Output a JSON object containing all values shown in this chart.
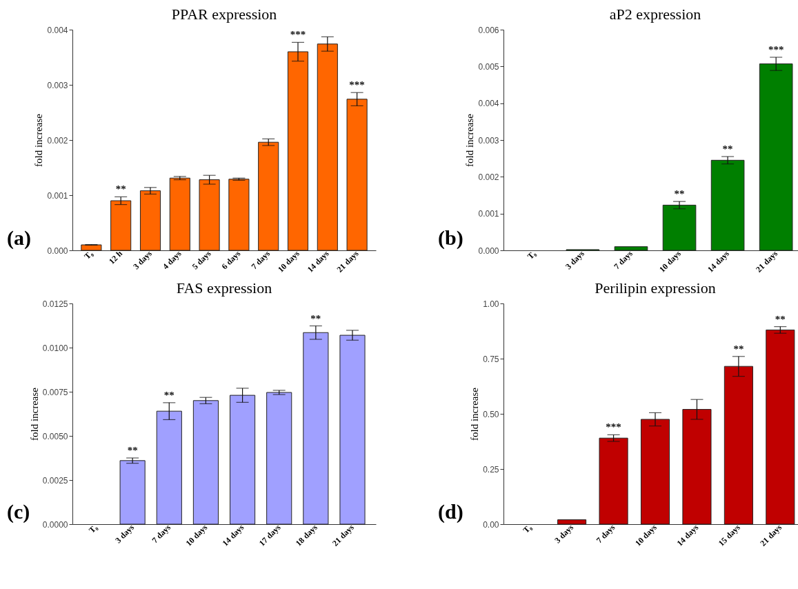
{
  "chart_data": [
    {
      "type": "bar",
      "title": "PPAR expression",
      "ylabel": "fold increase",
      "categories": [
        "T₀",
        "12 h",
        "3 days",
        "4 days",
        "5 days",
        "6 days",
        "7 days",
        "10 days",
        "14 days",
        "21 days"
      ],
      "values": [
        0.0001,
        0.0009,
        0.00108,
        0.00131,
        0.00128,
        0.00129,
        0.00196,
        0.0036,
        0.00374,
        0.00274
      ],
      "errors": [
        5e-06,
        7e-05,
        6e-05,
        3e-05,
        8e-05,
        2e-05,
        6e-05,
        0.00017,
        0.00013,
        0.00012
      ],
      "color": "#ff6600",
      "ylim": [
        0,
        0.004
      ],
      "yticks": [
        {
          "value": 0,
          "label": "0.000"
        },
        0.001,
        0.002,
        0.003,
        0.004
      ],
      "annotations": [
        "(a)",
        {
          "text": "**",
          "x": "12 h",
          "y": 0.00097
        },
        {
          "text": "***",
          "x": "10 days",
          "y": 0.00377
        },
        {
          "text": "***",
          "x": "21 days",
          "y": 0.00286
        }
      ]
    },
    {
      "type": "bar",
      "title": "aP2 expression",
      "ylabel": "fold increase",
      "categories": [
        "T₀",
        "3 days",
        "7 days",
        "10 days",
        "14 days",
        "21 days"
      ],
      "values": [
        null,
        2e-05,
        0.0001,
        0.00123,
        0.00245,
        0.00507
      ],
      "errors": [
        null,
        null,
        null,
        0.0001,
        0.0001,
        0.00018
      ],
      "color": "#007f00",
      "ylim": [
        0,
        0.006
      ],
      "yticks": [
        {
          "value": 0,
          "label": "0.000"
        },
        0.001,
        0.002,
        0.003,
        0.004,
        0.005,
        0.006
      ],
      "annotations": [
        "(b)",
        {
          "text": "**",
          "x": "10 days",
          "y": 0.00133
        },
        {
          "text": "**",
          "x": "14 days",
          "y": 0.00255
        },
        {
          "text": "***",
          "x": "21 days",
          "y": 0.00525
        }
      ]
    },
    {
      "type": "bar",
      "title": "FAS expression",
      "ylabel": "fold increase",
      "categories": [
        "T₀",
        "3 days",
        "7 days",
        "10 days",
        "14 days",
        "17 days",
        "18 days",
        "21 days"
      ],
      "values": [
        null,
        0.0036,
        0.0064,
        0.007,
        0.0073,
        0.00746,
        0.01085,
        0.0107
      ],
      "errors": [
        null,
        0.00015,
        0.00048,
        0.00018,
        0.0004,
        0.00012,
        0.00038,
        0.00028
      ],
      "color": "#a0a0ff",
      "ylim": [
        0,
        0.0125
      ],
      "yticks": [
        {
          "value": 0,
          "label": "0.0000"
        },
        0.0025,
        {
          "value": 0.005,
          "label": "0.0050"
        },
        0.0075,
        {
          "value": 0.01,
          "label": "0.0100"
        },
        0.0125
      ],
      "annotations": [
        "(c)",
        {
          "text": "**",
          "x": "3 days",
          "y": 0.00375
        },
        {
          "text": "**",
          "x": "7 days",
          "y": 0.00688
        },
        {
          "text": "**",
          "x": "18 days",
          "y": 0.01123
        }
      ]
    },
    {
      "type": "bar",
      "title": "Perilipin expression",
      "ylabel": "fold increase",
      "categories": [
        "T₀",
        "3 days",
        "7 days",
        "10 days",
        "14 days",
        "15 days",
        "21 days"
      ],
      "values": [
        null,
        0.02,
        0.39,
        0.475,
        0.52,
        0.715,
        0.88
      ],
      "errors": [
        null,
        null,
        0.015,
        0.03,
        0.045,
        0.045,
        0.015
      ],
      "color": "#c00000",
      "ylim": [
        0,
        1
      ],
      "yticks": [
        {
          "value": 0,
          "label": "0.00"
        },
        {
          "value": 0.25,
          "label": "0.25"
        },
        {
          "value": 0.5,
          "label": "0.50"
        },
        {
          "value": 0.75,
          "label": "0.75"
        },
        {
          "value": 1,
          "label": "1.00"
        }
      ],
      "annotations": [
        "(d)",
        {
          "text": "***",
          "x": "7 days",
          "y": 0.405
        },
        {
          "text": "**",
          "x": "15 days",
          "y": 0.76
        },
        {
          "text": "**",
          "x": "21 days",
          "y": 0.895
        }
      ]
    }
  ]
}
